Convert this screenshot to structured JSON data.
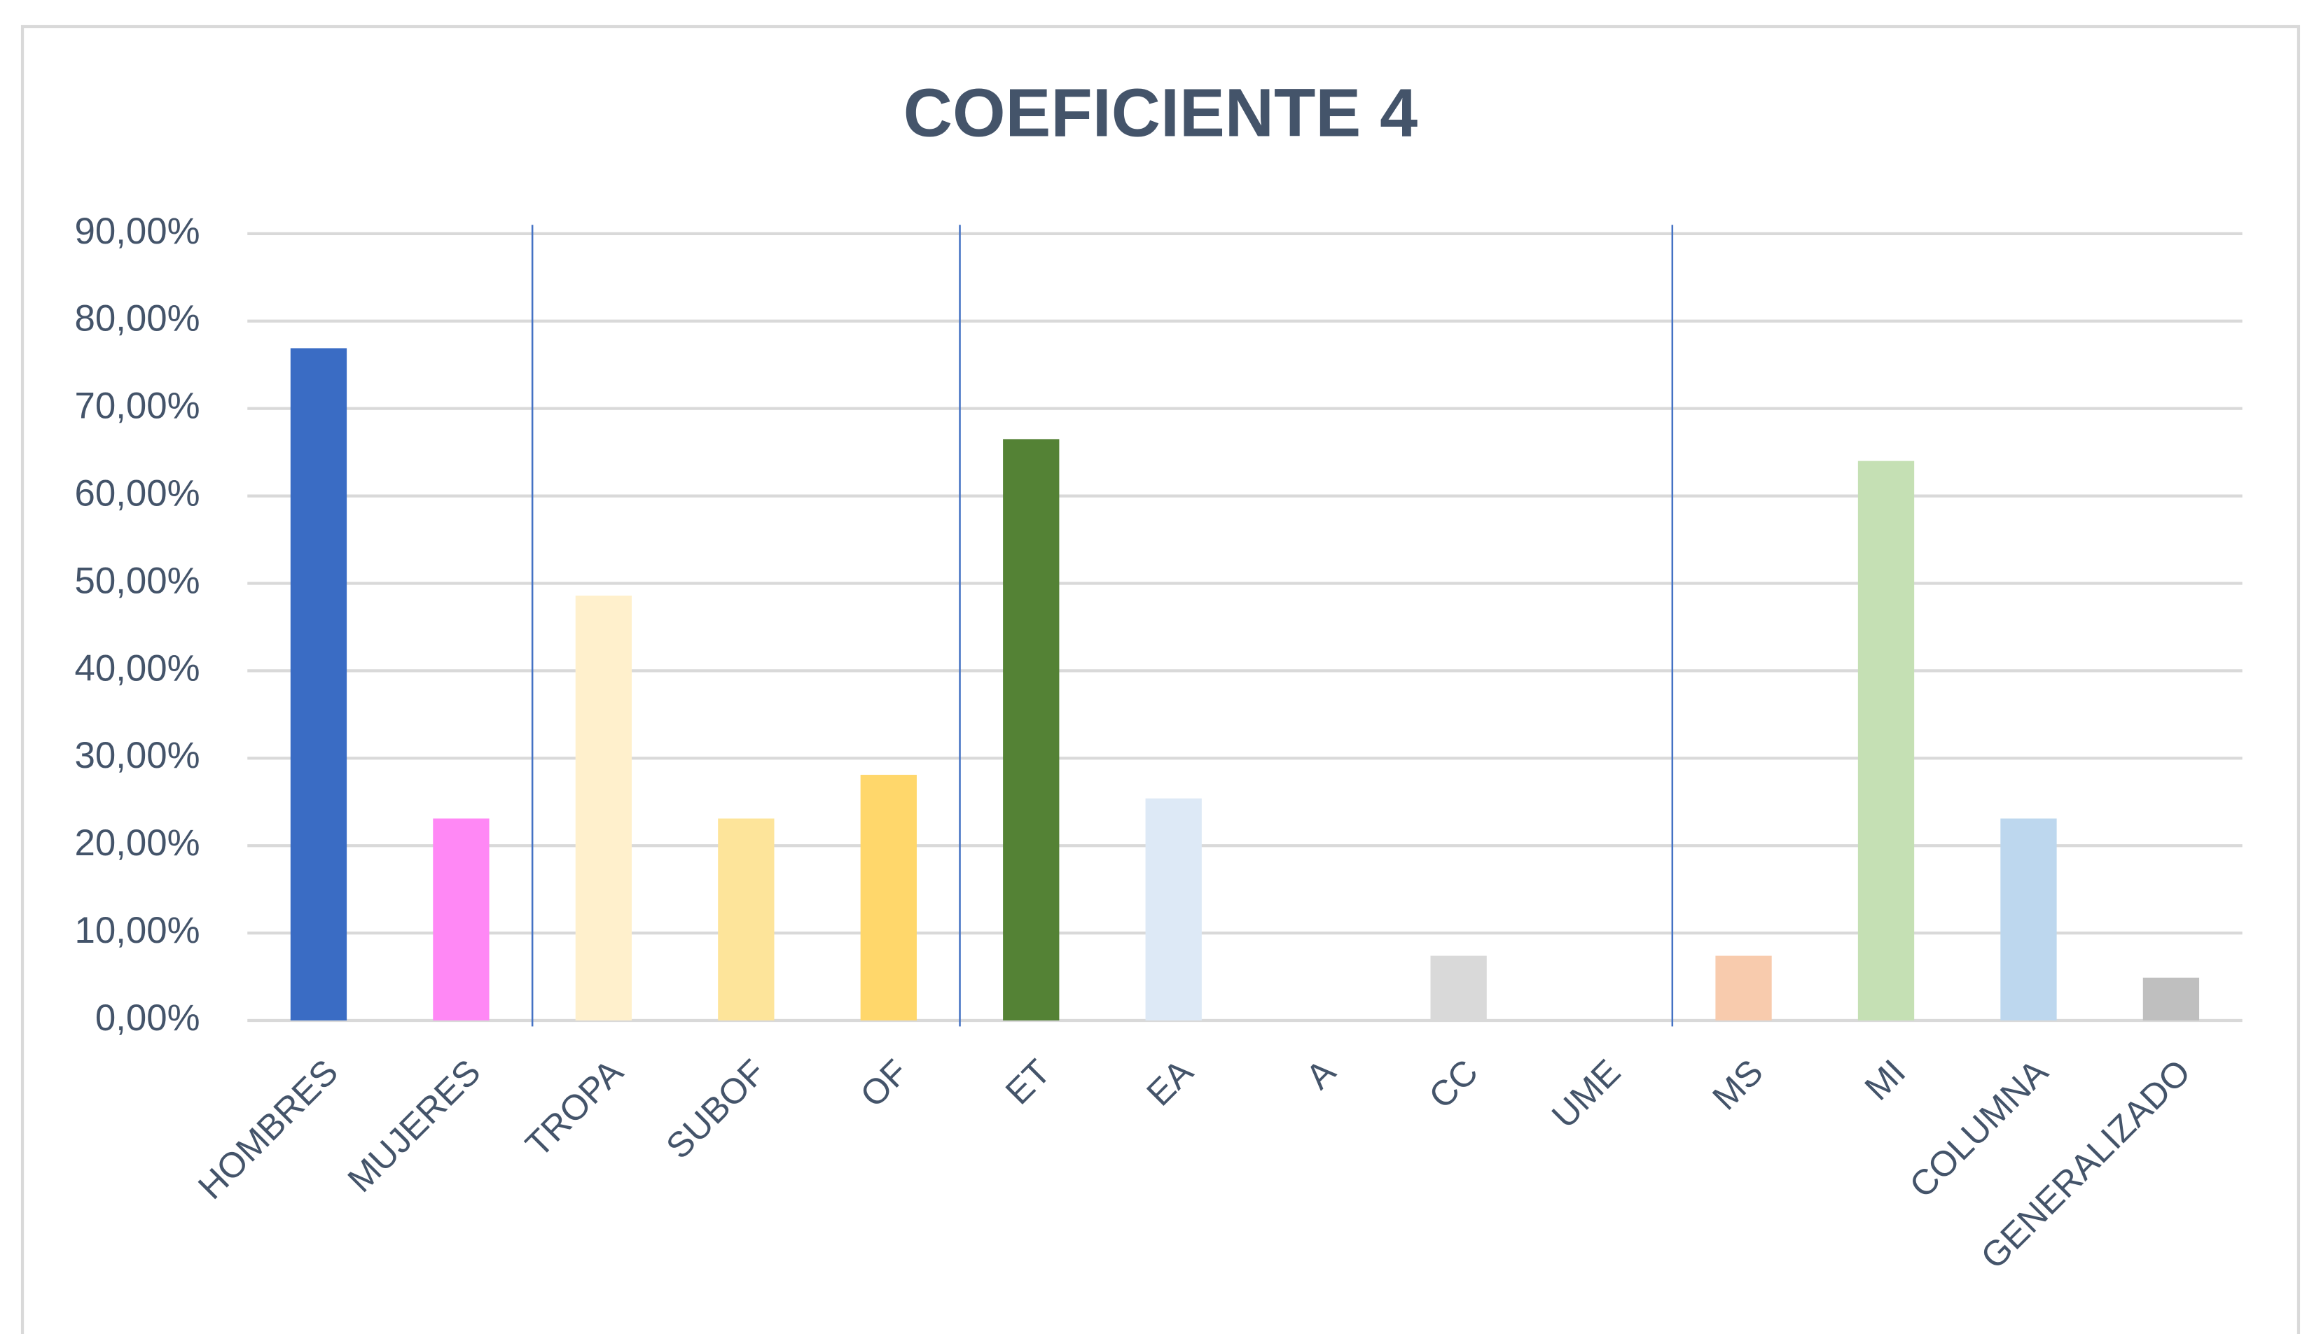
{
  "chart_data": {
    "type": "bar",
    "title": "COEFICIENTE 4",
    "categories": [
      "HOMBRES",
      "MUJERES",
      "TROPA",
      "SUBOF",
      "OF",
      "ET",
      "EA",
      "A",
      "CC",
      "UME",
      "MS",
      "MI",
      "COLUMNA",
      "GENERALIZADO"
    ],
    "values": [
      76.9,
      23.1,
      48.6,
      23.1,
      28.1,
      66.5,
      25.4,
      0,
      7.4,
      0,
      7.4,
      64.0,
      23.1,
      4.9
    ],
    "colors": [
      "#3a6cc4",
      "#ff88f5",
      "#fff0cc",
      "#fde49a",
      "#ffd76b",
      "#548235",
      "#dde9f6",
      "#bfbfbf",
      "#d9d9d9",
      "#bfbfbf",
      "#f8cbad",
      "#c5e0b4",
      "#bdd7ee",
      "#bfbfbf"
    ],
    "ylim": [
      0,
      90
    ],
    "yticks": [
      {
        "value": 0,
        "label": "0,00%"
      },
      {
        "value": 10,
        "label": "10,00%"
      },
      {
        "value": 20,
        "label": "20,00%"
      },
      {
        "value": 30,
        "label": "30,00%"
      },
      {
        "value": 40,
        "label": "40,00%"
      },
      {
        "value": 50,
        "label": "50,00%"
      },
      {
        "value": 60,
        "label": "60,00%"
      },
      {
        "value": 70,
        "label": "70,00%"
      },
      {
        "value": 80,
        "label": "80,00%"
      },
      {
        "value": 90,
        "label": "90,00%"
      }
    ],
    "grid": true
  }
}
